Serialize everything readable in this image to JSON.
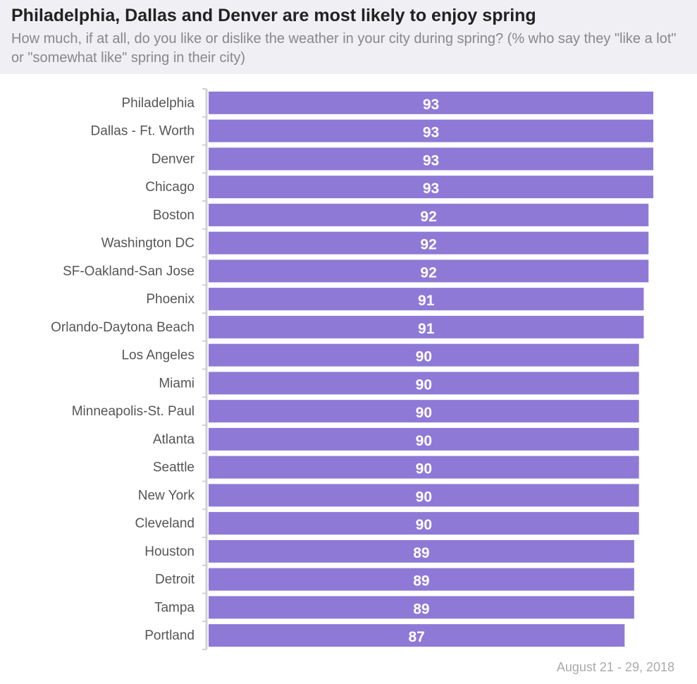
{
  "chart_data": {
    "type": "bar",
    "orientation": "horizontal",
    "title": "Philadelphia, Dallas and Denver are most likely to enjoy spring",
    "subtitle": "How much, if at all, do you like or dislike the weather in your city during spring? (% who say they \"like a lot\" or \"somewhat like\" spring in their city)",
    "categories": [
      "Philadelphia",
      "Dallas - Ft. Worth",
      "Denver",
      "Chicago",
      "Boston",
      "Washington DC",
      "SF-Oakland-San Jose",
      "Phoenix",
      "Orlando-Daytona Beach",
      "Los Angeles",
      "Miami",
      "Minneapolis-St. Paul",
      "Atlanta",
      "Seattle",
      "New York",
      "Cleveland",
      "Houston",
      "Detroit",
      "Tampa",
      "Portland"
    ],
    "values": [
      93,
      93,
      93,
      93,
      92,
      92,
      92,
      91,
      91,
      90,
      90,
      90,
      90,
      90,
      90,
      90,
      89,
      89,
      89,
      87
    ],
    "xlim": [
      0,
      93
    ],
    "grid": false,
    "bar_color": "#8e79d6",
    "footnote": "August 21 - 29, 2018"
  }
}
